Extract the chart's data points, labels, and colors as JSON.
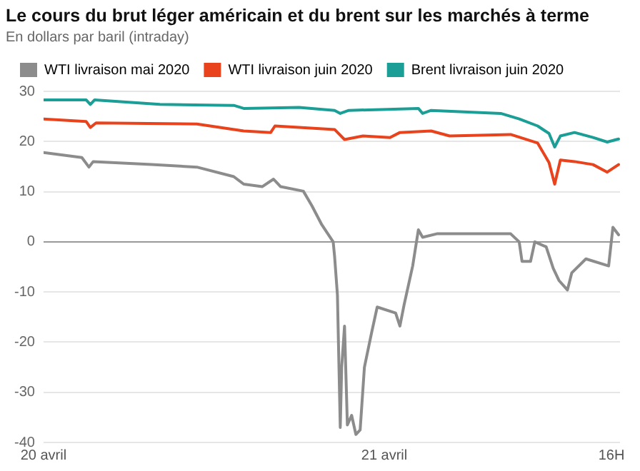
{
  "chart_data": {
    "type": "line",
    "title": "Le cours du brut léger américain et du brent sur les marchés à terme",
    "subtitle": "En dollars par baril (intraday)",
    "xlim": [
      "2020-04-20T00:00",
      "2020-04-21T16:36"
    ],
    "xticks": [
      {
        "value": "2020-04-20T00:00",
        "label": "20 avril"
      },
      {
        "value": "2020-04-21T00:00",
        "label": "21 avril"
      },
      {
        "value": "2020-04-21T16:00",
        "label": "16H"
      }
    ],
    "ylim": [
      -40,
      30
    ],
    "yticks": [
      -40,
      -30,
      -20,
      -10,
      0,
      10,
      20,
      30
    ],
    "grid": "y",
    "legend": "top left",
    "marker": "none",
    "line_style": "solid",
    "series": [
      {
        "name": "WTI livraison mai 2020",
        "color": "#8c8c8c",
        "x": [
          "2020-04-20T00:00",
          "2020-04-20T02:42",
          "2020-04-20T03:12",
          "2020-04-20T03:30",
          "2020-04-20T07:36",
          "2020-04-20T10:48",
          "2020-04-20T13:24",
          "2020-04-20T14:06",
          "2020-04-20T15:24",
          "2020-04-20T16:12",
          "2020-04-20T16:42",
          "2020-04-20T18:18",
          "2020-04-20T18:54",
          "2020-04-20T19:36",
          "2020-04-20T20:24",
          "2020-04-20T20:30",
          "2020-04-20T20:42",
          "2020-04-20T20:54",
          "2020-04-20T21:00",
          "2020-04-20T21:12",
          "2020-04-20T21:24",
          "2020-04-20T21:42",
          "2020-04-20T22:00",
          "2020-04-20T22:18",
          "2020-04-20T22:36",
          "2020-04-20T23:06",
          "2020-04-20T23:30",
          "2020-04-21T00:48",
          "2020-04-21T01:06",
          "2020-04-21T01:24",
          "2020-04-21T02:00",
          "2020-04-21T02:24",
          "2020-04-21T02:42",
          "2020-04-21T03:42",
          "2020-04-21T08:54",
          "2020-04-21T09:30",
          "2020-04-21T09:42",
          "2020-04-21T10:18",
          "2020-04-21T10:36",
          "2020-04-21T11:24",
          "2020-04-21T11:54",
          "2020-04-21T12:18",
          "2020-04-21T12:54",
          "2020-04-21T13:12",
          "2020-04-21T14:12",
          "2020-04-21T15:48",
          "2020-04-21T16:06",
          "2020-04-21T16:30"
        ],
        "values": [
          17.8,
          16.8,
          14.9,
          16.0,
          15.4,
          14.9,
          13.0,
          11.5,
          11.0,
          12.5,
          11.0,
          10.1,
          7.2,
          3.4,
          0,
          -2.9,
          -10.6,
          -37.0,
          -25.0,
          -16.8,
          -36.5,
          -34.6,
          -38.4,
          -37.5,
          -25.0,
          -18.2,
          -13.0,
          -14.2,
          -16.8,
          -12.5,
          -4.8,
          2.4,
          0.9,
          1.6,
          1.6,
          0,
          -3.9,
          -3.9,
          0,
          -1.0,
          -5.3,
          -7.7,
          -9.6,
          -6.2,
          -3.4,
          -4.8,
          2.9,
          1.4
        ]
      },
      {
        "name": "WTI livraison juin 2020",
        "color": "#e8431c",
        "x": [
          "2020-04-20T00:00",
          "2020-04-20T03:00",
          "2020-04-20T03:18",
          "2020-04-20T03:42",
          "2020-04-20T10:48",
          "2020-04-20T14:06",
          "2020-04-20T16:00",
          "2020-04-20T16:18",
          "2020-04-20T20:30",
          "2020-04-20T21:12",
          "2020-04-20T22:30",
          "2020-04-21T00:24",
          "2020-04-21T01:06",
          "2020-04-21T03:18",
          "2020-04-21T04:36",
          "2020-04-21T08:54",
          "2020-04-21T10:48",
          "2020-04-21T11:36",
          "2020-04-21T12:00",
          "2020-04-21T12:24",
          "2020-04-21T13:24",
          "2020-04-21T14:42",
          "2020-04-21T15:42",
          "2020-04-21T16:30"
        ],
        "values": [
          24.5,
          24.0,
          22.8,
          23.7,
          23.5,
          22.1,
          21.8,
          23.1,
          22.4,
          20.4,
          21.1,
          20.8,
          21.8,
          22.1,
          21.1,
          21.4,
          19.7,
          15.8,
          11.5,
          16.3,
          16.0,
          15.4,
          13.9,
          15.4
        ]
      },
      {
        "name": "Brent livraison juin 2020",
        "color": "#1a9e96",
        "x": [
          "2020-04-20T00:00",
          "2020-04-20T03:00",
          "2020-04-20T03:18",
          "2020-04-20T03:36",
          "2020-04-20T08:12",
          "2020-04-20T13:24",
          "2020-04-20T14:06",
          "2020-04-20T18:00",
          "2020-04-20T20:30",
          "2020-04-20T20:54",
          "2020-04-20T21:30",
          "2020-04-21T02:24",
          "2020-04-21T02:42",
          "2020-04-21T03:18",
          "2020-04-21T08:12",
          "2020-04-21T09:30",
          "2020-04-21T10:48",
          "2020-04-21T11:36",
          "2020-04-21T12:00",
          "2020-04-21T12:24",
          "2020-04-21T13:24",
          "2020-04-21T14:42",
          "2020-04-21T15:42",
          "2020-04-21T16:30"
        ],
        "values": [
          28.3,
          28.3,
          27.4,
          28.3,
          27.4,
          27.2,
          26.6,
          26.8,
          26.2,
          25.6,
          26.2,
          26.6,
          25.6,
          26.2,
          25.6,
          24.5,
          23.1,
          21.6,
          18.9,
          21.1,
          21.8,
          20.8,
          19.9,
          20.5
        ]
      }
    ]
  }
}
